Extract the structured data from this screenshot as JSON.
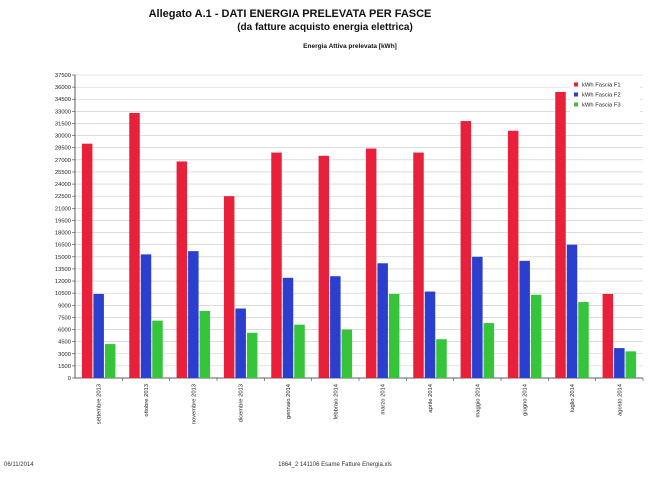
{
  "header": {
    "title": "Allegato A.1 - DATI ENERGIA PRELEVATA PER FASCE",
    "subtitle": "(da fatture acquisto energia elettrica)"
  },
  "footer": {
    "date": "06/11/2014",
    "file": "1864_2 141106 Esame Fatture Energia.xls"
  },
  "chart_data": {
    "type": "bar",
    "title": "Energia Attiva prelevata [kWh]",
    "xlabel": "",
    "ylabel": "",
    "ylim": [
      0,
      37500
    ],
    "y_ticks": [
      0,
      1500,
      3000,
      4500,
      6000,
      7500,
      9000,
      10500,
      12000,
      13500,
      15000,
      16500,
      18000,
      19500,
      21000,
      22500,
      24000,
      25500,
      27000,
      28500,
      30000,
      31500,
      33000,
      34500,
      36000,
      37500
    ],
    "y_tick_labels": [
      "0",
      "1500",
      "3000",
      "4500",
      "6000",
      "7500",
      "9000",
      "10500",
      "12000",
      "13500",
      "15000",
      "16500",
      "18000",
      "19500",
      "21000",
      "22500",
      "24000",
      "25500",
      "27000",
      "28500",
      "30000",
      "31500",
      "33000",
      "34500",
      "36000",
      "37500"
    ],
    "grid": true,
    "legend_position": "top-right",
    "categories": [
      "settembre 2013",
      "ottobre 2013",
      "novembre 2013",
      "dicembre 2013",
      "gennaio 2014",
      "febbraio 2014",
      "marzo 2014",
      "aprile 2014",
      "maggio 2014",
      "giugno 2014",
      "luglio 2014",
      "agosto 2014"
    ],
    "series": [
      {
        "name": "kWh Fascia F1",
        "color": "#e8203a",
        "values": [
          29000,
          32800,
          26800,
          22500,
          27900,
          27500,
          28400,
          27900,
          31800,
          30600,
          35400,
          10400
        ]
      },
      {
        "name": "kWh Fascia F2",
        "color": "#2b3fcf",
        "values": [
          10400,
          15300,
          15700,
          8600,
          12400,
          12600,
          14200,
          10700,
          15000,
          14500,
          16500,
          3700
        ]
      },
      {
        "name": "kWh Fascia F3",
        "color": "#35c43a",
        "values": [
          4200,
          7100,
          8300,
          5600,
          6600,
          6000,
          10400,
          4800,
          6800,
          10300,
          9400,
          3300
        ]
      }
    ]
  }
}
